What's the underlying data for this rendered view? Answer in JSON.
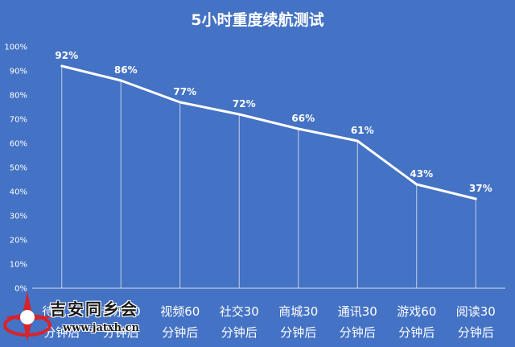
{
  "chart_data": {
    "type": "line",
    "title": "5小时重度续航测试",
    "categories": [
      [
        "待机30",
        "分钟后"
      ],
      [
        "音乐30",
        "分钟后"
      ],
      [
        "视频60",
        "分钟后"
      ],
      [
        "社交30",
        "分钟后"
      ],
      [
        "商城30",
        "分钟后"
      ],
      [
        "通讯30",
        "分钟后"
      ],
      [
        "游戏60",
        "分钟后"
      ],
      [
        "阅读30",
        "分钟后"
      ]
    ],
    "values": [
      92,
      86,
      77,
      72,
      66,
      61,
      43,
      37
    ],
    "data_labels": [
      "92%",
      "86%",
      "77%",
      "72%",
      "66%",
      "61%",
      "43%",
      "37%"
    ],
    "y_ticks": [
      "0%",
      "10%",
      "20%",
      "30%",
      "40%",
      "50%",
      "60%",
      "70%",
      "80%",
      "90%",
      "100%"
    ],
    "ylim": [
      0,
      100
    ],
    "drop_lines": true,
    "grid": false,
    "colors": {
      "background": "#4472c4",
      "line": "#ffffff",
      "text": "#ffffff",
      "axis": "#d9e1f2"
    }
  },
  "watermark": {
    "text": "吉安同乡会",
    "url": "www.jatxh.cn"
  }
}
